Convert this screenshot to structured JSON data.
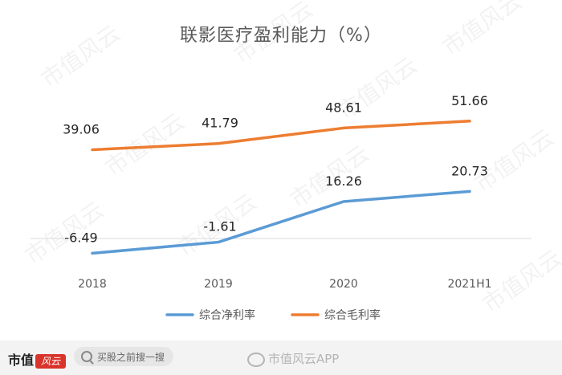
{
  "chart_data": {
    "type": "line",
    "title": "联影医疗盈利能力（%）",
    "categories": [
      "2018",
      "2019",
      "2020",
      "2021H1"
    ],
    "series": [
      {
        "name": "综合毛利率",
        "color": "#ED7D31",
        "values": [
          39.06,
          41.79,
          48.61,
          51.66
        ],
        "labels": [
          "39.06",
          "41.79",
          "48.61",
          "51.66"
        ]
      },
      {
        "name": "综合净利率",
        "color": "#5B9BD5",
        "values": [
          -6.49,
          -1.61,
          16.26,
          20.73
        ],
        "labels": [
          "-6.49",
          "-1.61",
          "16.26",
          "20.73"
        ]
      }
    ],
    "legend_order": [
      "综合净利率",
      "综合毛利率"
    ],
    "legend_position": "bottom",
    "ylim": [
      -10,
      60
    ],
    "grid": false,
    "zero_line": true
  },
  "footer": {
    "brand": "市值",
    "brand_logo": "风云",
    "search_placeholder": "买股之前搜一搜",
    "watermark": "市值风云APP"
  },
  "background_watermark": "市值风云"
}
